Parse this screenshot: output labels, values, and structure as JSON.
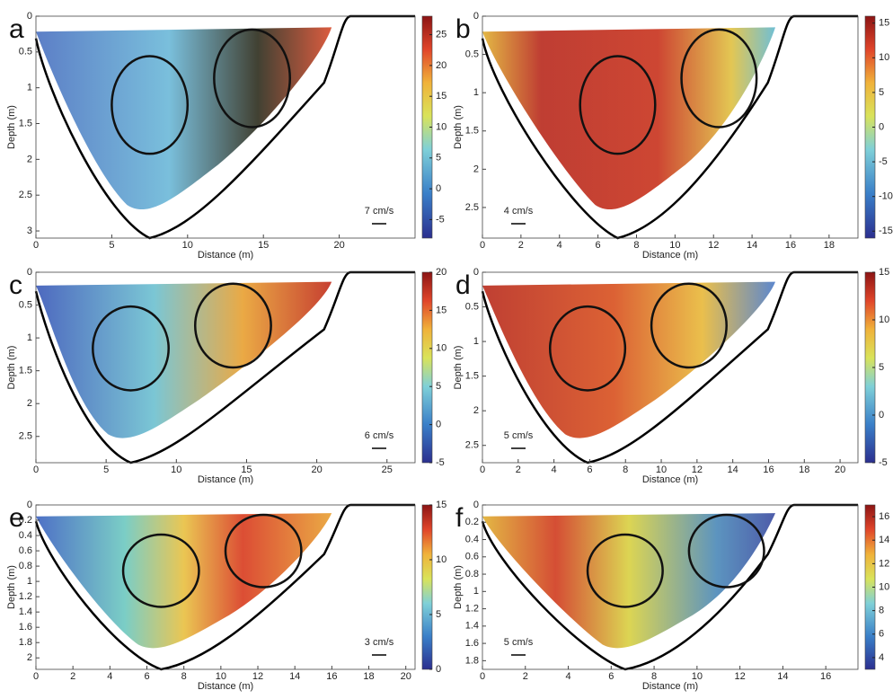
{
  "chart_data": [
    {
      "type": "velocity-field",
      "panel": "a",
      "xlabel": "Distance (m)",
      "ylabel": "Depth (m)",
      "xlim": [
        0,
        25
      ],
      "xticks": [
        0,
        5,
        10,
        15,
        20
      ],
      "ylim": [
        0,
        3.1
      ],
      "yticks": [
        0,
        0.5,
        1,
        1.5,
        2,
        2.5,
        3
      ],
      "clim": [
        -8,
        28
      ],
      "cticks": [
        -5,
        0,
        5,
        10,
        15,
        20,
        25
      ],
      "scale_label": "7 cm/s"
    },
    {
      "type": "velocity-field",
      "panel": "b",
      "xlabel": "Distance (m)",
      "ylabel": "Depth (m)",
      "xlim": [
        0,
        19.5
      ],
      "xticks": [
        0,
        2,
        4,
        6,
        8,
        10,
        12,
        14,
        16,
        18
      ],
      "ylim": [
        0,
        2.9
      ],
      "yticks": [
        0,
        0.5,
        1,
        1.5,
        2,
        2.5
      ],
      "clim": [
        -16,
        16
      ],
      "cticks": [
        -15,
        -10,
        -5,
        0,
        5,
        10,
        15
      ],
      "scale_label": "4 cm/s"
    },
    {
      "type": "velocity-field",
      "panel": "c",
      "xlabel": "Distance (m)",
      "ylabel": "Depth (m)",
      "xlim": [
        0,
        27
      ],
      "xticks": [
        0,
        5,
        10,
        15,
        20,
        25
      ],
      "ylim": [
        0,
        2.9
      ],
      "yticks": [
        0,
        0.5,
        1,
        1.5,
        2,
        2.5
      ],
      "clim": [
        -5,
        20
      ],
      "cticks": [
        -5,
        0,
        5,
        10,
        15,
        20
      ],
      "scale_label": "6 cm/s"
    },
    {
      "type": "velocity-field",
      "panel": "d",
      "xlabel": "Distance (m)",
      "ylabel": "Depth (m)",
      "xlim": [
        0,
        21
      ],
      "xticks": [
        0,
        2,
        4,
        6,
        8,
        10,
        12,
        14,
        16,
        18,
        20
      ],
      "ylim": [
        0,
        2.75
      ],
      "yticks": [
        0,
        0.5,
        1,
        1.5,
        2,
        2.5
      ],
      "clim": [
        -5,
        15
      ],
      "cticks": [
        -5,
        0,
        5,
        10,
        15
      ],
      "scale_label": "5 cm/s"
    },
    {
      "type": "velocity-field",
      "panel": "e",
      "xlabel": "Distance (m)",
      "ylabel": "Depth (m)",
      "xlim": [
        0,
        20.5
      ],
      "xticks": [
        0,
        2,
        4,
        6,
        8,
        10,
        12,
        14,
        16,
        18,
        20
      ],
      "ylim": [
        0,
        2.15
      ],
      "yticks": [
        0,
        0.2,
        0.4,
        0.6,
        0.8,
        1,
        1.2,
        1.4,
        1.6,
        1.8,
        2
      ],
      "clim": [
        0,
        15
      ],
      "cticks": [
        0,
        5,
        10,
        15
      ],
      "scale_label": "3 cm/s"
    },
    {
      "type": "velocity-field",
      "panel": "f",
      "xlabel": "Distance (m)",
      "ylabel": "Depth (m)",
      "xlim": [
        0,
        17.5
      ],
      "xticks": [
        0,
        2,
        4,
        6,
        8,
        10,
        12,
        14,
        16
      ],
      "ylim": [
        0,
        1.9
      ],
      "yticks": [
        0,
        0.2,
        0.4,
        0.6,
        0.8,
        1,
        1.2,
        1.4,
        1.6,
        1.8
      ],
      "clim": [
        3,
        17
      ],
      "cticks": [
        4,
        6,
        8,
        10,
        12,
        14,
        16
      ],
      "scale_label": "5 cm/s"
    }
  ]
}
